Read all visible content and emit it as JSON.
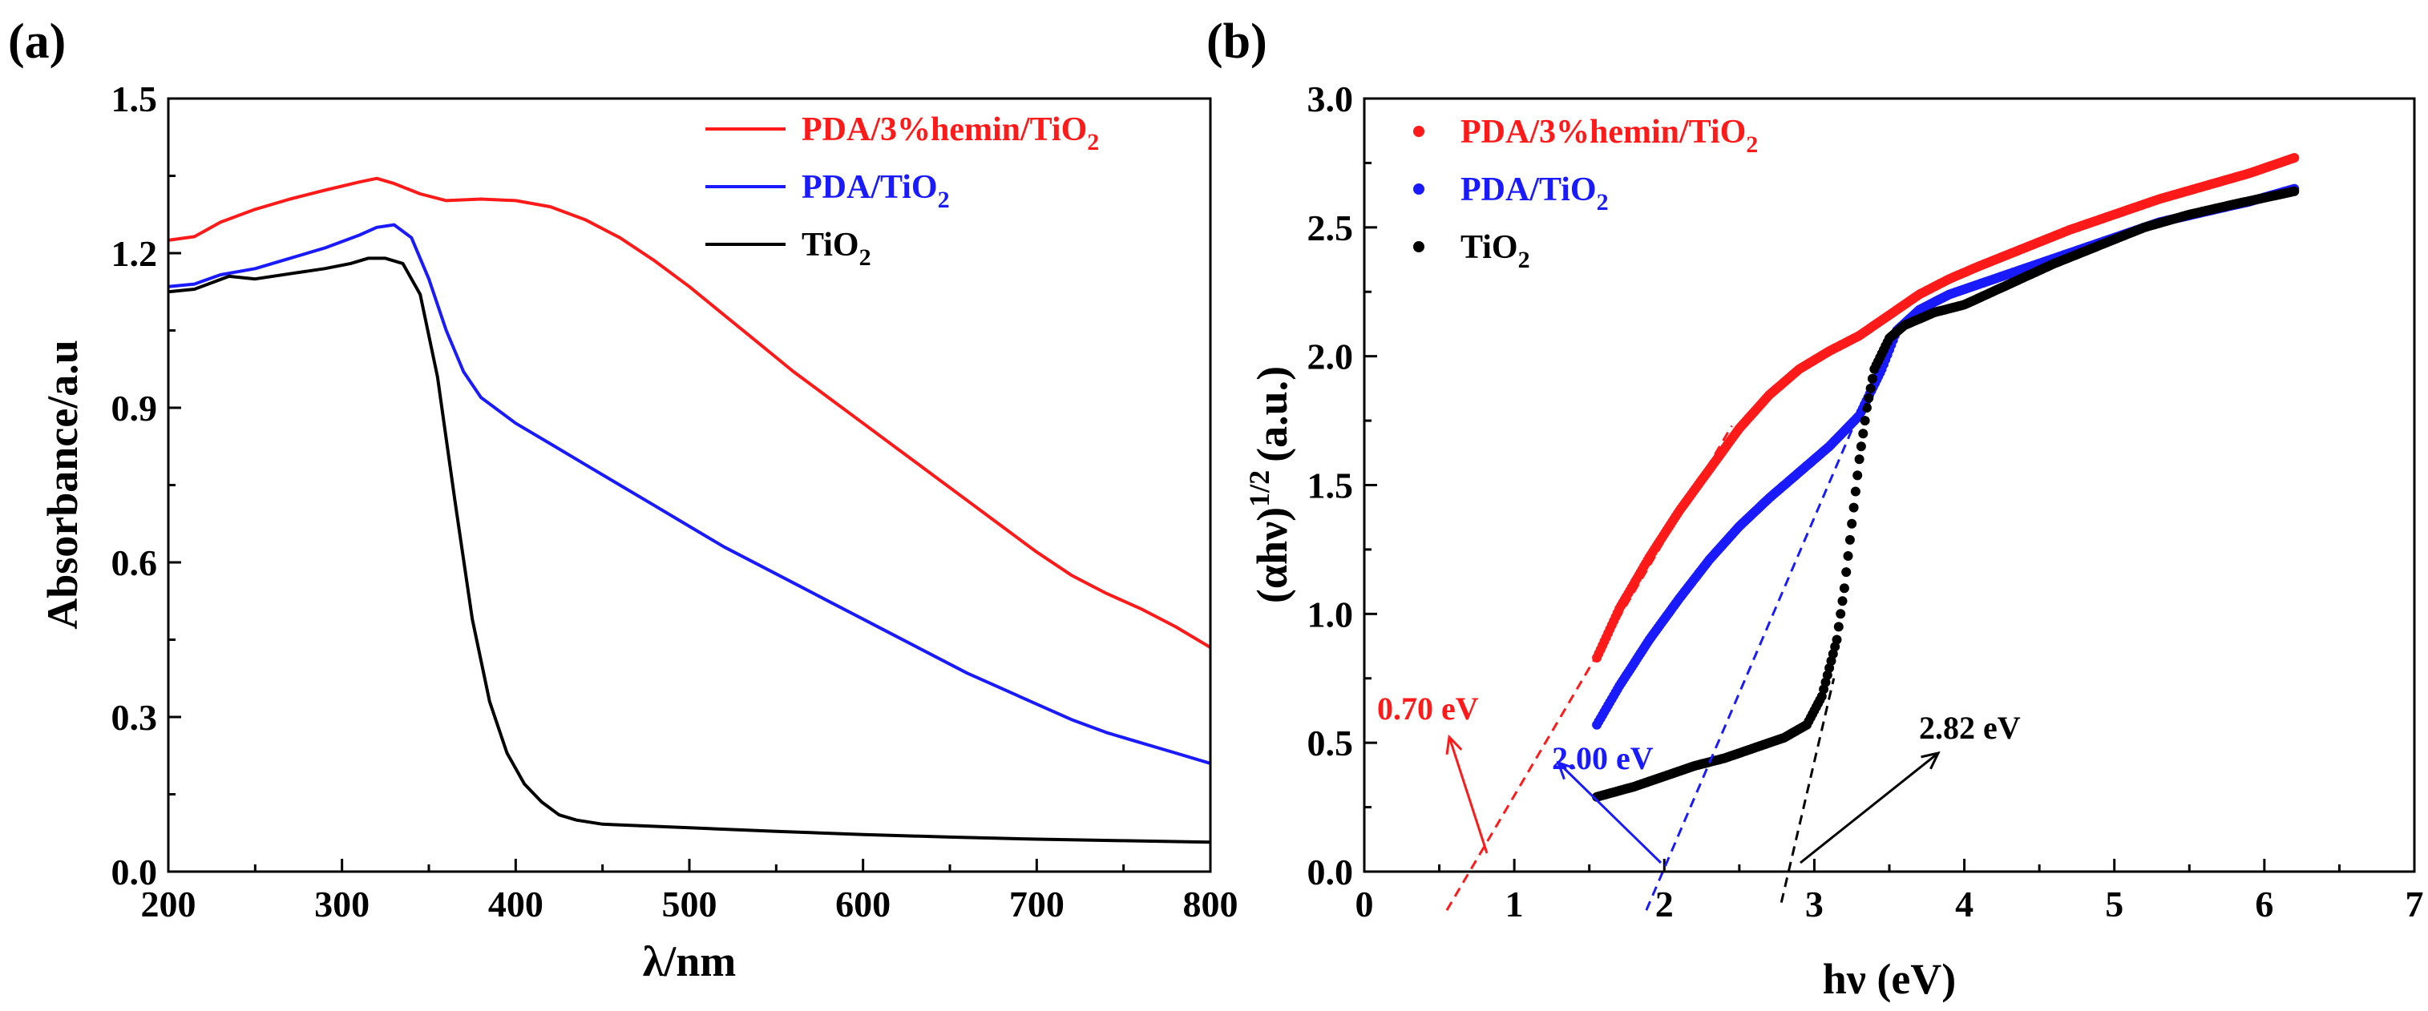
{
  "chart_data": [
    {
      "panel_label": "(a)",
      "type": "line",
      "xlabel": "λ/nm",
      "ylabel": "Absorbance/a.u",
      "xlim": [
        200,
        800
      ],
      "ylim": [
        0,
        1.5
      ],
      "xticks": [
        "200",
        "300",
        "400",
        "500",
        "600",
        "700",
        "800"
      ],
      "yticks": [
        "0.0",
        "0.3",
        "0.6",
        "0.9",
        "1.2",
        "1.5"
      ],
      "legend_position": "top-right",
      "series": [
        {
          "name": "PDA/3%hemin/TiO",
          "subscript": "2",
          "color": "#ff1a1a",
          "points": [
            [
              200,
              1.225
            ],
            [
              215,
              1.232
            ],
            [
              230,
              1.26
            ],
            [
              250,
              1.285
            ],
            [
              270,
              1.305
            ],
            [
              290,
              1.322
            ],
            [
              310,
              1.338
            ],
            [
              320,
              1.345
            ],
            [
              330,
              1.335
            ],
            [
              345,
              1.315
            ],
            [
              360,
              1.302
            ],
            [
              380,
              1.305
            ],
            [
              400,
              1.302
            ],
            [
              420,
              1.29
            ],
            [
              440,
              1.265
            ],
            [
              460,
              1.23
            ],
            [
              480,
              1.185
            ],
            [
              500,
              1.135
            ],
            [
              520,
              1.08
            ],
            [
              540,
              1.025
            ],
            [
              560,
              0.97
            ],
            [
              580,
              0.92
            ],
            [
              600,
              0.87
            ],
            [
              620,
              0.82
            ],
            [
              640,
              0.77
            ],
            [
              660,
              0.72
            ],
            [
              680,
              0.67
            ],
            [
              700,
              0.62
            ],
            [
              720,
              0.575
            ],
            [
              740,
              0.54
            ],
            [
              760,
              0.51
            ],
            [
              780,
              0.475
            ],
            [
              800,
              0.435
            ]
          ]
        },
        {
          "name": "PDA/TiO",
          "subscript": "2",
          "color": "#1a1aff",
          "points": [
            [
              200,
              1.135
            ],
            [
              215,
              1.14
            ],
            [
              230,
              1.158
            ],
            [
              250,
              1.17
            ],
            [
              270,
              1.19
            ],
            [
              290,
              1.21
            ],
            [
              310,
              1.235
            ],
            [
              320,
              1.25
            ],
            [
              330,
              1.255
            ],
            [
              340,
              1.23
            ],
            [
              350,
              1.15
            ],
            [
              360,
              1.05
            ],
            [
              370,
              0.97
            ],
            [
              380,
              0.92
            ],
            [
              400,
              0.87
            ],
            [
              420,
              0.83
            ],
            [
              440,
              0.79
            ],
            [
              460,
              0.75
            ],
            [
              480,
              0.71
            ],
            [
              500,
              0.67
            ],
            [
              520,
              0.63
            ],
            [
              540,
              0.595
            ],
            [
              560,
              0.56
            ],
            [
              580,
              0.525
            ],
            [
              600,
              0.49
            ],
            [
              620,
              0.455
            ],
            [
              640,
              0.42
            ],
            [
              660,
              0.385
            ],
            [
              680,
              0.355
            ],
            [
              700,
              0.325
            ],
            [
              720,
              0.295
            ],
            [
              740,
              0.27
            ],
            [
              760,
              0.25
            ],
            [
              780,
              0.23
            ],
            [
              800,
              0.21
            ]
          ]
        },
        {
          "name": "TiO",
          "subscript": "2",
          "color": "#000000",
          "points": [
            [
              200,
              1.125
            ],
            [
              215,
              1.13
            ],
            [
              235,
              1.155
            ],
            [
              250,
              1.15
            ],
            [
              270,
              1.16
            ],
            [
              290,
              1.17
            ],
            [
              305,
              1.18
            ],
            [
              315,
              1.19
            ],
            [
              325,
              1.19
            ],
            [
              335,
              1.18
            ],
            [
              345,
              1.12
            ],
            [
              355,
              0.96
            ],
            [
              365,
              0.72
            ],
            [
              375,
              0.49
            ],
            [
              385,
              0.33
            ],
            [
              395,
              0.23
            ],
            [
              405,
              0.17
            ],
            [
              415,
              0.135
            ],
            [
              425,
              0.11
            ],
            [
              435,
              0.1
            ],
            [
              450,
              0.092
            ],
            [
              500,
              0.085
            ],
            [
              550,
              0.078
            ],
            [
              600,
              0.072
            ],
            [
              650,
              0.067
            ],
            [
              700,
              0.063
            ],
            [
              750,
              0.06
            ],
            [
              800,
              0.057
            ]
          ]
        }
      ]
    },
    {
      "panel_label": "(b)",
      "type": "scatter",
      "xlabel": "hν (eV)",
      "ylabel": "(αhν)^1/2 (a.u.)",
      "ylabel_base": "(αhν)",
      "ylabel_exp": "1/2",
      "ylabel_unit": "(a.u.)",
      "xlim": [
        0,
        7
      ],
      "ylim": [
        0,
        3.0
      ],
      "xticks": [
        "0",
        "1",
        "2",
        "3",
        "4",
        "5",
        "6",
        "7"
      ],
      "yticks": [
        "0.0",
        "0.5",
        "1.0",
        "1.5",
        "2.0",
        "2.5",
        "3.0"
      ],
      "legend_position": "top-left",
      "series": [
        {
          "name": "PDA/3%hemin/TiO",
          "subscript": "2",
          "color": "#ff1a1a",
          "points": [
            [
              1.55,
              0.83
            ],
            [
              1.7,
              1.02
            ],
            [
              1.9,
              1.22
            ],
            [
              2.1,
              1.4
            ],
            [
              2.3,
              1.56
            ],
            [
              2.5,
              1.72
            ],
            [
              2.7,
              1.85
            ],
            [
              2.9,
              1.95
            ],
            [
              3.1,
              2.02
            ],
            [
              3.3,
              2.08
            ],
            [
              3.5,
              2.16
            ],
            [
              3.7,
              2.24
            ],
            [
              3.9,
              2.3
            ],
            [
              4.1,
              2.35
            ],
            [
              4.4,
              2.42
            ],
            [
              4.7,
              2.49
            ],
            [
              5.0,
              2.55
            ],
            [
              5.3,
              2.61
            ],
            [
              5.6,
              2.66
            ],
            [
              5.9,
              2.71
            ],
            [
              6.2,
              2.77
            ]
          ],
          "tangent": [
            [
              0.55,
              -0.15
            ],
            [
              2.45,
              1.73
            ]
          ],
          "band_gap_label": "0.70 eV",
          "band_gap": 0.7
        },
        {
          "name": "PDA/TiO",
          "subscript": "2",
          "color": "#1a1aff",
          "points": [
            [
              1.55,
              0.57
            ],
            [
              1.7,
              0.72
            ],
            [
              1.9,
              0.9
            ],
            [
              2.1,
              1.06
            ],
            [
              2.3,
              1.21
            ],
            [
              2.5,
              1.34
            ],
            [
              2.7,
              1.45
            ],
            [
              2.9,
              1.55
            ],
            [
              3.1,
              1.65
            ],
            [
              3.3,
              1.77
            ],
            [
              3.45,
              1.95
            ],
            [
              3.55,
              2.1
            ],
            [
              3.7,
              2.18
            ],
            [
              3.9,
              2.24
            ],
            [
              4.1,
              2.28
            ],
            [
              4.4,
              2.34
            ],
            [
              4.7,
              2.4
            ],
            [
              5.0,
              2.46
            ],
            [
              5.3,
              2.52
            ],
            [
              5.6,
              2.56
            ],
            [
              5.9,
              2.6
            ],
            [
              6.2,
              2.65
            ]
          ],
          "tangent": [
            [
              1.88,
              -0.15
            ],
            [
              3.35,
              1.85
            ]
          ],
          "band_gap_label": "2.00 eV",
          "band_gap": 2.0
        },
        {
          "name": "TiO",
          "subscript": "2",
          "color": "#000000",
          "points": [
            [
              1.55,
              0.29
            ],
            [
              1.8,
              0.33
            ],
            [
              2.0,
              0.37
            ],
            [
              2.2,
              0.41
            ],
            [
              2.4,
              0.44
            ],
            [
              2.6,
              0.48
            ],
            [
              2.8,
              0.52
            ],
            [
              2.95,
              0.57
            ],
            [
              3.05,
              0.68
            ],
            [
              3.15,
              0.9
            ],
            [
              3.2,
              1.1
            ],
            [
              3.25,
              1.35
            ],
            [
              3.3,
              1.6
            ],
            [
              3.35,
              1.8
            ],
            [
              3.4,
              1.95
            ],
            [
              3.5,
              2.07
            ],
            [
              3.6,
              2.12
            ],
            [
              3.8,
              2.17
            ],
            [
              4.0,
              2.2
            ],
            [
              4.3,
              2.28
            ],
            [
              4.6,
              2.36
            ],
            [
              4.9,
              2.43
            ],
            [
              5.2,
              2.5
            ],
            [
              5.5,
              2.55
            ],
            [
              5.8,
              2.59
            ],
            [
              6.2,
              2.64
            ]
          ],
          "tangent": [
            [
              2.78,
              -0.12
            ],
            [
              3.13,
              0.75
            ]
          ],
          "band_gap_label": "2.82 eV",
          "band_gap": 2.82
        }
      ]
    }
  ]
}
